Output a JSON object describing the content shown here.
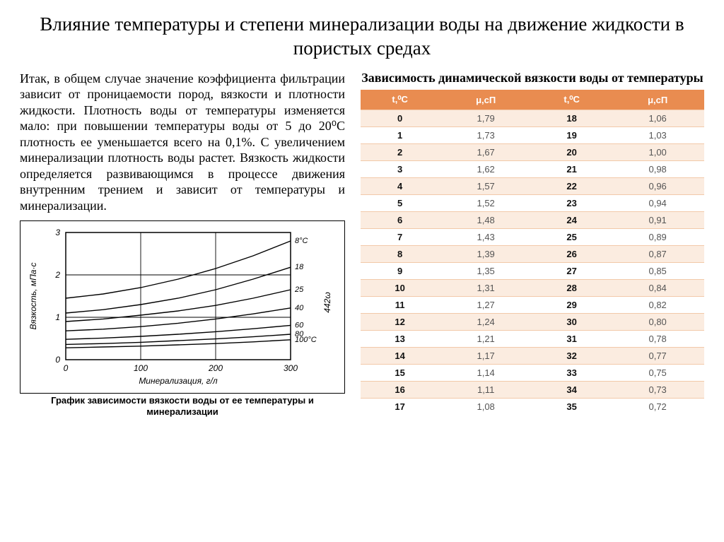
{
  "title": "Влияние температуры и степени минерализации воды на движение жидкости в пористых средах",
  "paragraph": "Итак, в общем случае значение коэффициента фильтрации зависит от проницаемости пород, вязкости и плотности жидкости. Плотность воды от температуры изменяется мало: при повышении температуры воды от 5 до 20⁰С плотность ее уменьшается всего на 0,1%. С увеличением минерализации плотность воды растет. Вязкость жидкости определяется развивающимся в процессе движения внутренним трением и зависит от температуры и минерализации.",
  "chart": {
    "caption": "График зависимости вязкости воды от ее температуры и минерализации",
    "xlabel": "Минерализация, г/л",
    "ylabel": "Вязкость, мПа·с",
    "xlim": [
      0,
      300
    ],
    "ylim": [
      0,
      3
    ],
    "xticks": [
      0,
      100,
      200,
      300
    ],
    "yticks": [
      0,
      1,
      2,
      3
    ],
    "stroke_color": "#000000",
    "bg_color": "#ffffff",
    "line_width": 1.4,
    "side_note": "442ω",
    "series": [
      {
        "label": "8°С",
        "pts": [
          [
            0,
            1.45
          ],
          [
            50,
            1.55
          ],
          [
            100,
            1.7
          ],
          [
            150,
            1.9
          ],
          [
            200,
            2.15
          ],
          [
            250,
            2.45
          ],
          [
            300,
            2.8
          ]
        ]
      },
      {
        "label": "18",
        "pts": [
          [
            0,
            1.1
          ],
          [
            50,
            1.18
          ],
          [
            100,
            1.3
          ],
          [
            150,
            1.45
          ],
          [
            200,
            1.65
          ],
          [
            250,
            1.9
          ],
          [
            300,
            2.18
          ]
        ]
      },
      {
        "label": "25",
        "pts": [
          [
            0,
            0.9
          ],
          [
            50,
            0.96
          ],
          [
            100,
            1.05
          ],
          [
            150,
            1.15
          ],
          [
            200,
            1.28
          ],
          [
            250,
            1.45
          ],
          [
            300,
            1.65
          ]
        ]
      },
      {
        "label": "40",
        "pts": [
          [
            0,
            0.68
          ],
          [
            50,
            0.72
          ],
          [
            100,
            0.78
          ],
          [
            150,
            0.86
          ],
          [
            200,
            0.96
          ],
          [
            250,
            1.08
          ],
          [
            300,
            1.22
          ]
        ]
      },
      {
        "label": "60",
        "pts": [
          [
            0,
            0.48
          ],
          [
            50,
            0.51
          ],
          [
            100,
            0.55
          ],
          [
            150,
            0.6
          ],
          [
            200,
            0.66
          ],
          [
            250,
            0.73
          ],
          [
            300,
            0.81
          ]
        ]
      },
      {
        "label": "80",
        "pts": [
          [
            0,
            0.36
          ],
          [
            50,
            0.38
          ],
          [
            100,
            0.41
          ],
          [
            150,
            0.45
          ],
          [
            200,
            0.49
          ],
          [
            250,
            0.54
          ],
          [
            300,
            0.6
          ]
        ]
      },
      {
        "label": "100°С",
        "pts": [
          [
            0,
            0.28
          ],
          [
            50,
            0.3
          ],
          [
            100,
            0.32
          ],
          [
            150,
            0.35
          ],
          [
            200,
            0.38
          ],
          [
            250,
            0.42
          ],
          [
            300,
            0.47
          ]
        ]
      }
    ]
  },
  "table": {
    "title": "Зависимость динамической вязкости воды от температуры",
    "headers": [
      "t,⁰С",
      "μ,сП",
      "t,⁰С",
      "μ,сП"
    ],
    "row_odd_bg": "#fbece0",
    "row_even_bg": "#ffffff",
    "header_bg": "#e98c50",
    "header_fg": "#ffffff",
    "border_color": "#f2c9a9",
    "rows": [
      [
        "0",
        "1,79",
        "18",
        "1,06"
      ],
      [
        "1",
        "1,73",
        "19",
        "1,03"
      ],
      [
        "2",
        "1,67",
        "20",
        "1,00"
      ],
      [
        "3",
        "1,62",
        "21",
        "0,98"
      ],
      [
        "4",
        "1,57",
        "22",
        "0,96"
      ],
      [
        "5",
        "1,52",
        "23",
        "0,94"
      ],
      [
        "6",
        "1,48",
        "24",
        "0,91"
      ],
      [
        "7",
        "1,43",
        "25",
        "0,89"
      ],
      [
        "8",
        "1,39",
        "26",
        "0,87"
      ],
      [
        "9",
        "1,35",
        "27",
        "0,85"
      ],
      [
        "10",
        "1,31",
        "28",
        "0,84"
      ],
      [
        "11",
        "1,27",
        "29",
        "0,82"
      ],
      [
        "12",
        "1,24",
        "30",
        "0,80"
      ],
      [
        "13",
        "1,21",
        "31",
        "0,78"
      ],
      [
        "14",
        "1,17",
        "32",
        "0,77"
      ],
      [
        "15",
        "1,14",
        "33",
        "0,75"
      ],
      [
        "16",
        "1,11",
        "34",
        "0,73"
      ],
      [
        "17",
        "1,08",
        "35",
        "0,72"
      ]
    ]
  }
}
